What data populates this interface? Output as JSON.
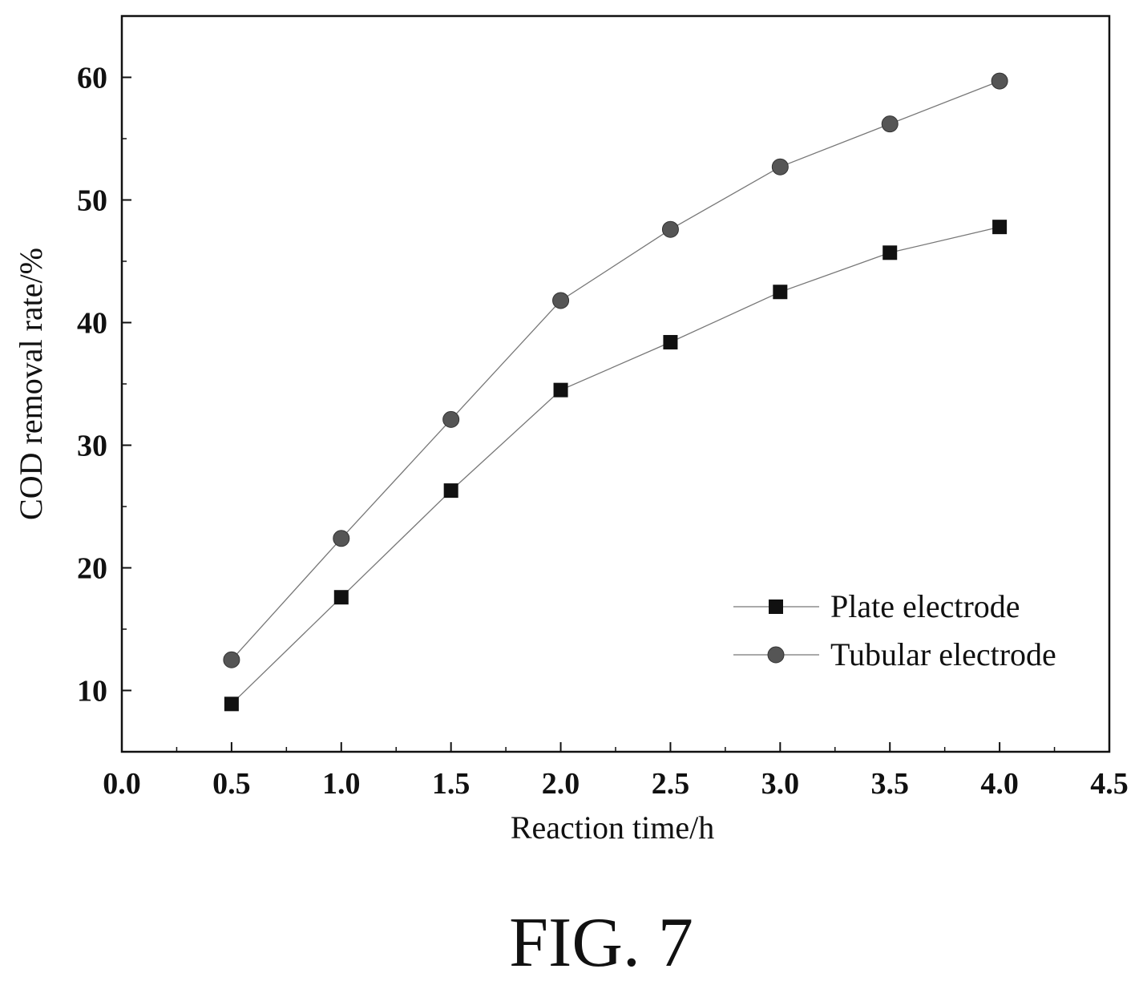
{
  "chart_data": {
    "type": "line",
    "xlabel": "Reaction time/h",
    "ylabel": "COD removal rate/%",
    "xlim": [
      0.0,
      4.5
    ],
    "ylim": [
      5,
      65
    ],
    "x_ticks": [
      "0.0",
      "0.5",
      "1.0",
      "1.5",
      "2.0",
      "2.5",
      "3.0",
      "3.5",
      "4.0",
      "4.5"
    ],
    "y_ticks": [
      "10",
      "20",
      "30",
      "40",
      "50",
      "60"
    ],
    "grid": false,
    "legend_position": "bottom-right",
    "x": [
      0.5,
      1.0,
      1.5,
      2.0,
      2.5,
      3.0,
      3.5,
      4.0
    ],
    "series": [
      {
        "name": "Plate electrode",
        "marker": "square",
        "color": "#111111",
        "values": [
          8.9,
          17.6,
          26.3,
          34.5,
          38.4,
          42.5,
          45.7,
          47.8
        ]
      },
      {
        "name": "Tubular electrode",
        "marker": "circle",
        "color": "#555555",
        "values": [
          12.5,
          22.4,
          32.1,
          41.8,
          47.6,
          52.7,
          56.2,
          59.7
        ]
      }
    ]
  },
  "figure_label": "FIG. 7"
}
